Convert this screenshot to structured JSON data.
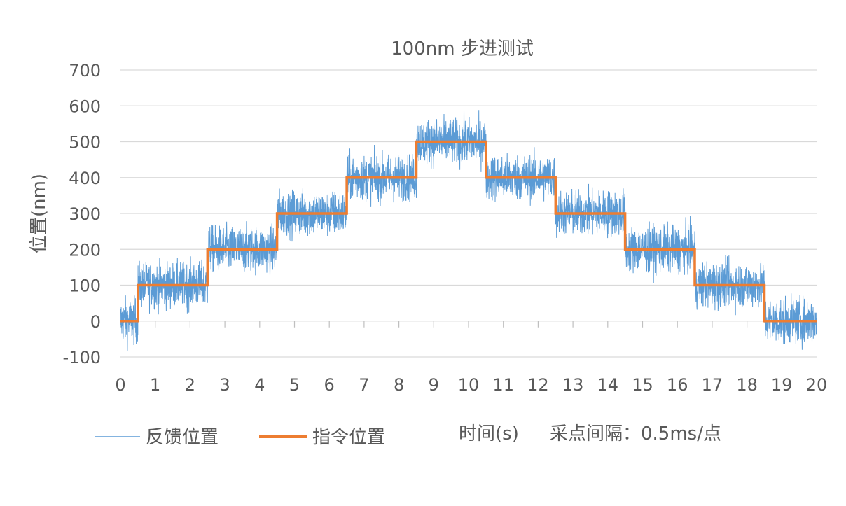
{
  "chart_data": {
    "type": "line",
    "title": "100nm 步进测试",
    "xlabel": "时间(s)",
    "ylabel": "位置(nm)",
    "note": "采点间隔：0.5ms/点",
    "xlim": [
      0,
      20
    ],
    "ylim": [
      -100,
      700
    ],
    "x_ticks": [
      "0",
      "1",
      "2",
      "3",
      "4",
      "5",
      "6",
      "7",
      "8",
      "9",
      "10",
      "11",
      "12",
      "13",
      "14",
      "15",
      "16",
      "17",
      "18",
      "19",
      "20"
    ],
    "y_ticks": [
      "-100",
      "0",
      "100",
      "200",
      "300",
      "400",
      "500",
      "600",
      "700"
    ],
    "grid": true,
    "legend_position": "bottom-left",
    "series": [
      {
        "name": "反馈位置",
        "color": "#5b9bd5",
        "noise_amplitude": 100,
        "steps": [
          {
            "x0": 0,
            "x1": 0.5,
            "y": 0
          },
          {
            "x0": 0.5,
            "x1": 2.5,
            "y": 100
          },
          {
            "x0": 2.5,
            "x1": 4.5,
            "y": 200
          },
          {
            "x0": 4.5,
            "x1": 6.5,
            "y": 300
          },
          {
            "x0": 6.5,
            "x1": 8.5,
            "y": 400
          },
          {
            "x0": 8.5,
            "x1": 10.5,
            "y": 500
          },
          {
            "x0": 10.5,
            "x1": 12.5,
            "y": 400
          },
          {
            "x0": 12.5,
            "x1": 14.5,
            "y": 300
          },
          {
            "x0": 14.5,
            "x1": 16.5,
            "y": 200
          },
          {
            "x0": 16.5,
            "x1": 18.5,
            "y": 100
          },
          {
            "x0": 18.5,
            "x1": 20,
            "y": 0
          }
        ]
      },
      {
        "name": "指令位置",
        "color": "#ed7d31",
        "x": [
          0,
          0.5,
          0.5,
          2.5,
          2.5,
          4.5,
          4.5,
          6.5,
          6.5,
          8.5,
          8.5,
          10.5,
          10.5,
          12.5,
          12.5,
          14.5,
          14.5,
          16.5,
          16.5,
          18.5,
          18.5,
          20
        ],
        "y": [
          0,
          0,
          100,
          100,
          200,
          200,
          300,
          300,
          400,
          400,
          500,
          500,
          400,
          400,
          300,
          300,
          200,
          200,
          100,
          100,
          0,
          0
        ]
      }
    ]
  }
}
